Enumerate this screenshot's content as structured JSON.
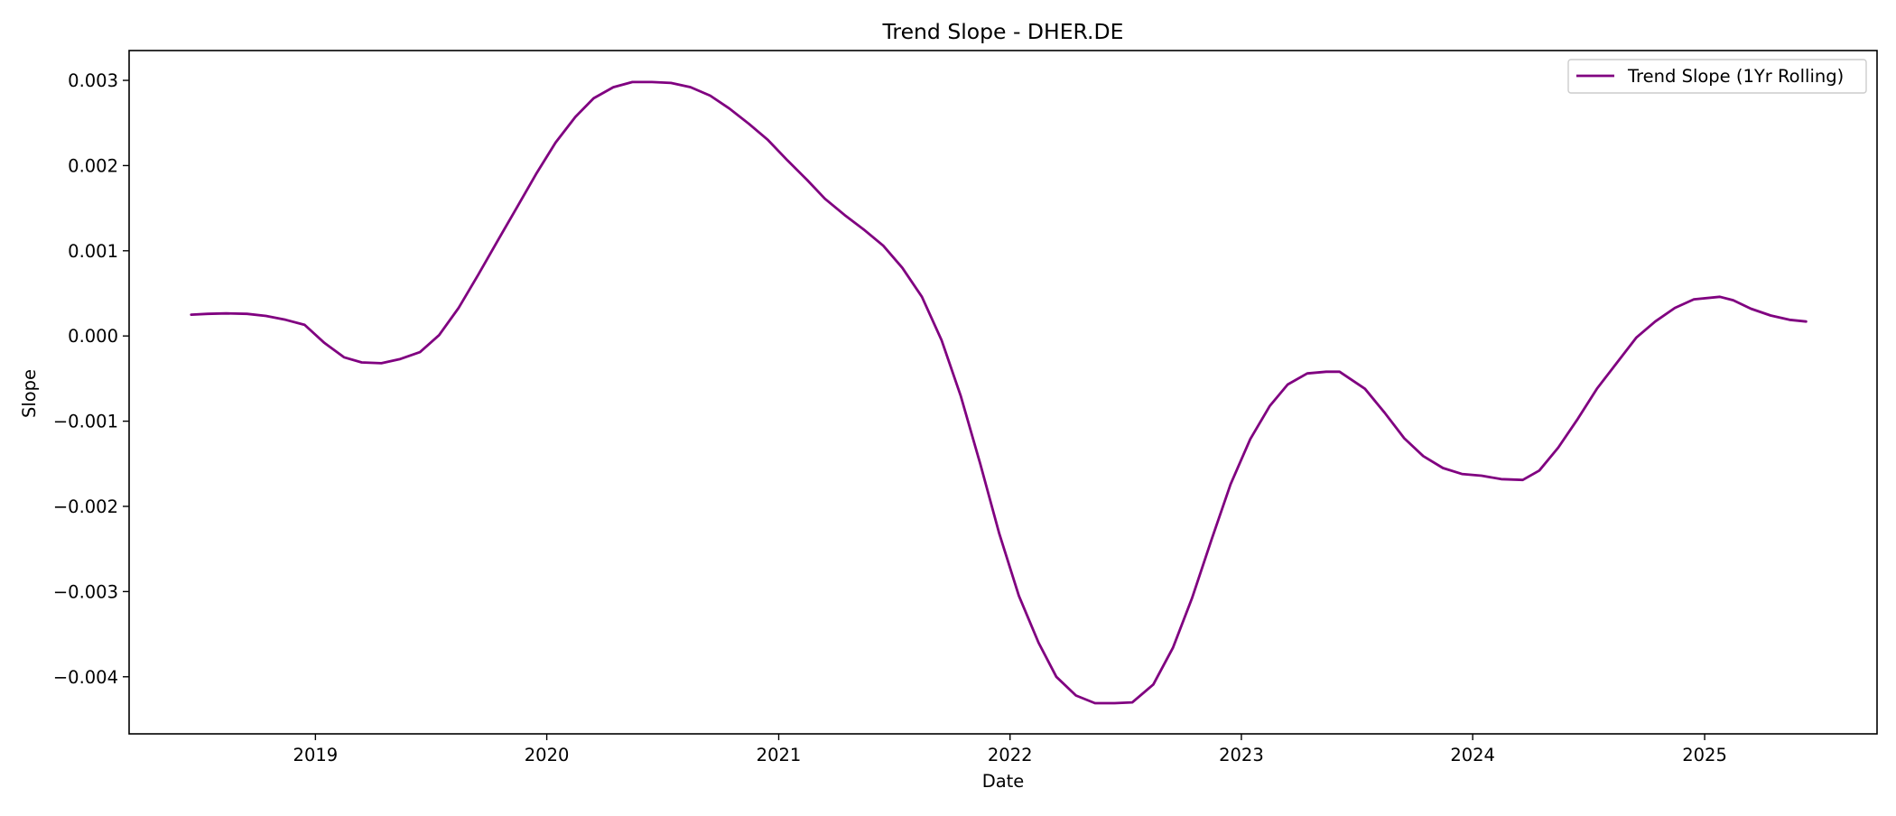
{
  "chart_data": {
    "type": "line",
    "title": "Trend Slope - DHER.DE",
    "xlabel": "Date",
    "ylabel": "Slope",
    "x_ticks": [
      "2019",
      "2020",
      "2021",
      "2022",
      "2023",
      "2024",
      "2025"
    ],
    "y_ticks": [
      "0.003",
      "0.002",
      "0.001",
      "0.000",
      "−0.001",
      "−0.002",
      "−0.003",
      "−0.004"
    ],
    "xlim": [
      "2018-03-13",
      "2025-09-30"
    ],
    "ylim": [
      -0.00467,
      0.00335
    ],
    "grid": false,
    "legend_position": "top-right",
    "series": [
      {
        "name": "Trend Slope (1Yr Rolling)",
        "color": "#800080",
        "x": [
          "2018-06-19",
          "2018-07-15",
          "2018-08-13",
          "2018-09-15",
          "2018-10-15",
          "2018-11-15",
          "2018-12-15",
          "2019-01-15",
          "2019-02-15",
          "2019-03-15",
          "2019-04-15",
          "2019-05-15",
          "2019-06-15",
          "2019-07-15",
          "2019-08-15",
          "2019-09-15",
          "2019-10-15",
          "2019-11-15",
          "2019-12-15",
          "2020-01-15",
          "2020-02-15",
          "2020-03-15",
          "2020-04-15",
          "2020-05-15",
          "2020-06-15",
          "2020-07-15",
          "2020-08-15",
          "2020-09-15",
          "2020-10-15",
          "2020-11-15",
          "2020-12-15",
          "2021-01-15",
          "2021-02-15",
          "2021-03-15",
          "2021-04-15",
          "2021-05-15",
          "2021-06-15",
          "2021-07-15",
          "2021-08-15",
          "2021-09-15",
          "2021-10-15",
          "2021-11-15",
          "2021-12-15",
          "2022-01-15",
          "2022-02-15",
          "2022-03-15",
          "2022-04-15",
          "2022-05-15",
          "2022-06-15",
          "2022-07-13",
          "2022-08-15",
          "2022-09-15",
          "2022-10-15",
          "2022-11-15",
          "2022-12-15",
          "2023-01-15",
          "2023-02-15",
          "2023-03-15",
          "2023-04-15",
          "2023-05-15",
          "2023-06-05",
          "2023-07-15",
          "2023-08-15",
          "2023-09-15",
          "2023-10-15",
          "2023-11-15",
          "2023-12-15",
          "2024-01-15",
          "2024-02-15",
          "2024-03-20",
          "2024-04-15",
          "2024-05-15",
          "2024-06-15",
          "2024-07-15",
          "2024-08-15",
          "2024-09-15",
          "2024-10-15",
          "2024-11-15",
          "2024-12-15",
          "2025-01-25",
          "2025-02-15",
          "2025-03-15",
          "2025-04-15",
          "2025-05-15",
          "2025-06-10"
        ],
        "values": [
          0.00025,
          0.00026,
          0.000265,
          0.00026,
          0.000235,
          0.00019,
          0.00013,
          -8e-05,
          -0.00025,
          -0.00031,
          -0.00032,
          -0.00027,
          -0.00019,
          1e-05,
          0.00033,
          0.00072,
          0.00111,
          0.00151,
          0.0019,
          0.00227,
          0.00257,
          0.00279,
          0.00292,
          0.00298,
          0.00298,
          0.00297,
          0.00292,
          0.00282,
          0.00267,
          0.00249,
          0.0023,
          0.00206,
          0.00183,
          0.00161,
          0.00142,
          0.00125,
          0.00106,
          0.0008,
          0.00046,
          -5e-05,
          -0.0007,
          -0.0015,
          -0.00232,
          -0.00305,
          -0.0036,
          -0.004,
          -0.00422,
          -0.00431,
          -0.00431,
          -0.0043,
          -0.00409,
          -0.00366,
          -0.00308,
          -0.00239,
          -0.00174,
          -0.00121,
          -0.00082,
          -0.00057,
          -0.00044,
          -0.00042,
          -0.00042,
          -0.00062,
          -0.0009,
          -0.0012,
          -0.00141,
          -0.00155,
          -0.00162,
          -0.00164,
          -0.00168,
          -0.00169,
          -0.00158,
          -0.00131,
          -0.00097,
          -0.00062,
          -0.00032,
          -2e-05,
          0.00017,
          0.00033,
          0.00043,
          0.00046,
          0.00042,
          0.00032,
          0.00024,
          0.00019,
          0.00017
        ]
      }
    ]
  }
}
